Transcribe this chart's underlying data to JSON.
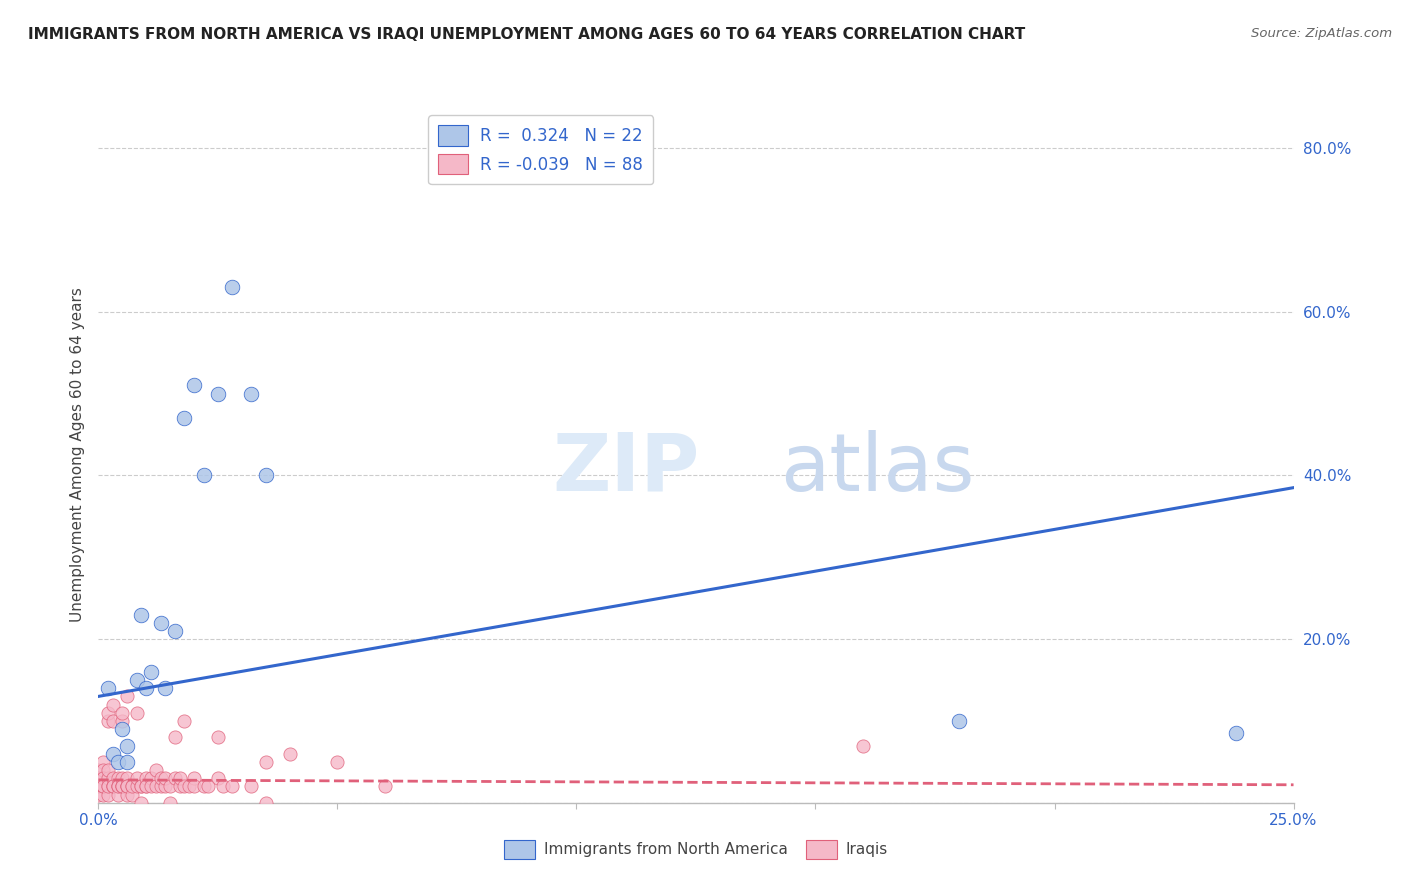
{
  "title": "IMMIGRANTS FROM NORTH AMERICA VS IRAQI UNEMPLOYMENT AMONG AGES 60 TO 64 YEARS CORRELATION CHART",
  "source": "Source: ZipAtlas.com",
  "ylabel": "Unemployment Among Ages 60 to 64 years",
  "xlim": [
    0.0,
    0.25
  ],
  "ylim": [
    0.0,
    0.85
  ],
  "blue_R": 0.324,
  "blue_N": 22,
  "pink_R": -0.039,
  "pink_N": 88,
  "blue_color": "#aec6e8",
  "blue_line_color": "#3366cc",
  "blue_edge_color": "#3366cc",
  "pink_color": "#f5b8c8",
  "pink_line_color": "#e0607a",
  "pink_edge_color": "#e0607a",
  "blue_scatter": [
    [
      0.002,
      0.14
    ],
    [
      0.003,
      0.06
    ],
    [
      0.004,
      0.05
    ],
    [
      0.005,
      0.09
    ],
    [
      0.006,
      0.07
    ],
    [
      0.006,
      0.05
    ],
    [
      0.008,
      0.15
    ],
    [
      0.009,
      0.23
    ],
    [
      0.01,
      0.14
    ],
    [
      0.011,
      0.16
    ],
    [
      0.013,
      0.22
    ],
    [
      0.014,
      0.14
    ],
    [
      0.016,
      0.21
    ],
    [
      0.018,
      0.47
    ],
    [
      0.02,
      0.51
    ],
    [
      0.022,
      0.4
    ],
    [
      0.025,
      0.5
    ],
    [
      0.028,
      0.63
    ],
    [
      0.032,
      0.5
    ],
    [
      0.035,
      0.4
    ],
    [
      0.18,
      0.1
    ],
    [
      0.238,
      0.085
    ]
  ],
  "pink_scatter": [
    [
      0.0,
      0.02
    ],
    [
      0.0,
      0.03
    ],
    [
      0.0,
      0.04
    ],
    [
      0.0,
      0.01
    ],
    [
      0.0,
      0.02
    ],
    [
      0.0,
      0.03
    ],
    [
      0.001,
      0.02
    ],
    [
      0.001,
      0.03
    ],
    [
      0.001,
      0.01
    ],
    [
      0.001,
      0.05
    ],
    [
      0.001,
      0.02
    ],
    [
      0.001,
      0.04
    ],
    [
      0.001,
      0.03
    ],
    [
      0.001,
      0.02
    ],
    [
      0.002,
      0.02
    ],
    [
      0.002,
      0.01
    ],
    [
      0.002,
      0.03
    ],
    [
      0.002,
      0.04
    ],
    [
      0.002,
      0.02
    ],
    [
      0.002,
      0.1
    ],
    [
      0.002,
      0.11
    ],
    [
      0.003,
      0.02
    ],
    [
      0.003,
      0.03
    ],
    [
      0.003,
      0.02
    ],
    [
      0.003,
      0.1
    ],
    [
      0.003,
      0.12
    ],
    [
      0.003,
      0.02
    ],
    [
      0.004,
      0.02
    ],
    [
      0.004,
      0.03
    ],
    [
      0.004,
      0.02
    ],
    [
      0.004,
      0.01
    ],
    [
      0.004,
      0.02
    ],
    [
      0.005,
      0.02
    ],
    [
      0.005,
      0.03
    ],
    [
      0.005,
      0.02
    ],
    [
      0.005,
      0.1
    ],
    [
      0.005,
      0.11
    ],
    [
      0.005,
      0.02
    ],
    [
      0.006,
      0.02
    ],
    [
      0.006,
      0.03
    ],
    [
      0.006,
      0.01
    ],
    [
      0.006,
      0.13
    ],
    [
      0.006,
      0.02
    ],
    [
      0.006,
      0.02
    ],
    [
      0.007,
      0.02
    ],
    [
      0.007,
      0.01
    ],
    [
      0.007,
      0.02
    ],
    [
      0.008,
      0.02
    ],
    [
      0.008,
      0.03
    ],
    [
      0.008,
      0.11
    ],
    [
      0.009,
      0.02
    ],
    [
      0.009,
      0.0
    ],
    [
      0.009,
      0.02
    ],
    [
      0.01,
      0.02
    ],
    [
      0.01,
      0.03
    ],
    [
      0.01,
      0.02
    ],
    [
      0.011,
      0.03
    ],
    [
      0.011,
      0.02
    ],
    [
      0.012,
      0.02
    ],
    [
      0.012,
      0.04
    ],
    [
      0.013,
      0.02
    ],
    [
      0.013,
      0.03
    ],
    [
      0.014,
      0.02
    ],
    [
      0.014,
      0.03
    ],
    [
      0.015,
      0.02
    ],
    [
      0.015,
      0.0
    ],
    [
      0.016,
      0.03
    ],
    [
      0.016,
      0.08
    ],
    [
      0.017,
      0.02
    ],
    [
      0.017,
      0.03
    ],
    [
      0.018,
      0.02
    ],
    [
      0.018,
      0.1
    ],
    [
      0.019,
      0.02
    ],
    [
      0.02,
      0.03
    ],
    [
      0.02,
      0.02
    ],
    [
      0.022,
      0.02
    ],
    [
      0.023,
      0.02
    ],
    [
      0.025,
      0.03
    ],
    [
      0.025,
      0.08
    ],
    [
      0.026,
      0.02
    ],
    [
      0.028,
      0.02
    ],
    [
      0.032,
      0.02
    ],
    [
      0.035,
      0.05
    ],
    [
      0.035,
      0.0
    ],
    [
      0.04,
      0.06
    ],
    [
      0.05,
      0.05
    ],
    [
      0.06,
      0.02
    ],
    [
      0.16,
      0.07
    ]
  ],
  "blue_trendline_x": [
    0.0,
    0.25
  ],
  "blue_trendline_y": [
    0.13,
    0.385
  ],
  "pink_trendline_x": [
    0.0,
    0.25
  ],
  "pink_trendline_y": [
    0.028,
    0.022
  ],
  "watermark_zip": "ZIP",
  "watermark_atlas": "atlas",
  "background_color": "#ffffff",
  "grid_color": "#cccccc",
  "yticks": [
    0.0,
    0.2,
    0.4,
    0.6,
    0.8
  ],
  "ytick_labels": [
    "",
    "20.0%",
    "40.0%",
    "60.0%",
    "80.0%"
  ]
}
